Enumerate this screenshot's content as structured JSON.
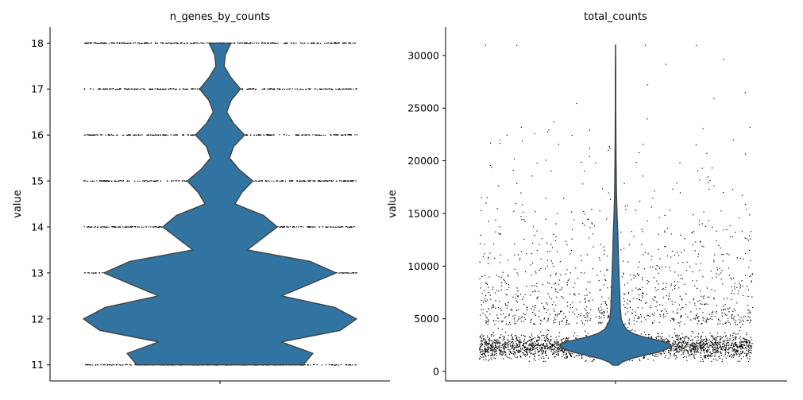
{
  "chart_data": [
    {
      "type": "violin",
      "title": "n_genes_by_counts",
      "ylabel": "value",
      "xlabel": "",
      "ylim": [
        10.65,
        18.35
      ],
      "yticks": [
        11,
        12,
        13,
        14,
        15,
        16,
        17,
        18
      ],
      "color": "#3274a1",
      "outline": "#3f3f3f",
      "jitter_points": "discrete",
      "density": [
        {
          "value": 11.0,
          "width": 0.61
        },
        {
          "value": 11.25,
          "width": 0.68
        },
        {
          "value": 11.5,
          "width": 0.45
        },
        {
          "value": 11.75,
          "width": 0.88
        },
        {
          "value": 12.0,
          "width": 1.0
        },
        {
          "value": 12.25,
          "width": 0.84
        },
        {
          "value": 12.5,
          "width": 0.45
        },
        {
          "value": 12.75,
          "width": 0.65
        },
        {
          "value": 13.0,
          "width": 0.85
        },
        {
          "value": 13.25,
          "width": 0.66
        },
        {
          "value": 13.5,
          "width": 0.2
        },
        {
          "value": 13.75,
          "width": 0.31
        },
        {
          "value": 14.0,
          "width": 0.42
        },
        {
          "value": 14.25,
          "width": 0.32
        },
        {
          "value": 14.5,
          "width": 0.11
        },
        {
          "value": 14.75,
          "width": 0.16
        },
        {
          "value": 15.0,
          "width": 0.24
        },
        {
          "value": 15.25,
          "width": 0.14
        },
        {
          "value": 15.5,
          "width": 0.07
        },
        {
          "value": 15.75,
          "width": 0.1
        },
        {
          "value": 16.0,
          "width": 0.18
        },
        {
          "value": 16.25,
          "width": 0.1
        },
        {
          "value": 16.5,
          "width": 0.05
        },
        {
          "value": 16.75,
          "width": 0.08
        },
        {
          "value": 17.0,
          "width": 0.15
        },
        {
          "value": 17.25,
          "width": 0.08
        },
        {
          "value": 17.5,
          "width": 0.03
        },
        {
          "value": 17.75,
          "width": 0.04
        },
        {
          "value": 18.0,
          "width": 0.08
        }
      ],
      "levels": [
        11,
        12,
        13,
        14,
        15,
        16,
        17,
        18
      ]
    },
    {
      "type": "violin",
      "title": "total_counts",
      "ylabel": "value",
      "xlabel": "",
      "ylim": [
        -900,
        32700
      ],
      "yticks": [
        0,
        5000,
        10000,
        15000,
        20000,
        25000,
        30000
      ],
      "color": "#3274a1",
      "outline": "#3f3f3f",
      "jitter_points": "continuous",
      "density": [
        {
          "value": 600,
          "width": 0.02
        },
        {
          "value": 900,
          "width": 0.05
        },
        {
          "value": 1200,
          "width": 0.11
        },
        {
          "value": 1500,
          "width": 0.2
        },
        {
          "value": 1800,
          "width": 0.3
        },
        {
          "value": 2100,
          "width": 0.37
        },
        {
          "value": 2400,
          "width": 0.41
        },
        {
          "value": 2700,
          "width": 0.39
        },
        {
          "value": 3000,
          "width": 0.3
        },
        {
          "value": 3300,
          "width": 0.2
        },
        {
          "value": 3600,
          "width": 0.13
        },
        {
          "value": 4000,
          "width": 0.08
        },
        {
          "value": 4500,
          "width": 0.055
        },
        {
          "value": 5000,
          "width": 0.042
        },
        {
          "value": 6000,
          "width": 0.035
        },
        {
          "value": 7000,
          "width": 0.032
        },
        {
          "value": 8000,
          "width": 0.029
        },
        {
          "value": 9000,
          "width": 0.026
        },
        {
          "value": 10000,
          "width": 0.024
        },
        {
          "value": 11000,
          "width": 0.021
        },
        {
          "value": 12000,
          "width": 0.019
        },
        {
          "value": 13000,
          "width": 0.017
        },
        {
          "value": 14000,
          "width": 0.014
        },
        {
          "value": 15000,
          "width": 0.011
        },
        {
          "value": 16000,
          "width": 0.009
        },
        {
          "value": 17000,
          "width": 0.007
        },
        {
          "value": 18000,
          "width": 0.006
        },
        {
          "value": 19000,
          "width": 0.005
        },
        {
          "value": 20000,
          "width": 0.004
        },
        {
          "value": 22000,
          "width": 0.003
        },
        {
          "value": 25000,
          "width": 0.002
        },
        {
          "value": 28000,
          "width": 0.0015
        },
        {
          "value": 31000,
          "width": 0.0008
        }
      ],
      "core_range": [
        1000,
        4500
      ],
      "max_value": 31000
    }
  ]
}
